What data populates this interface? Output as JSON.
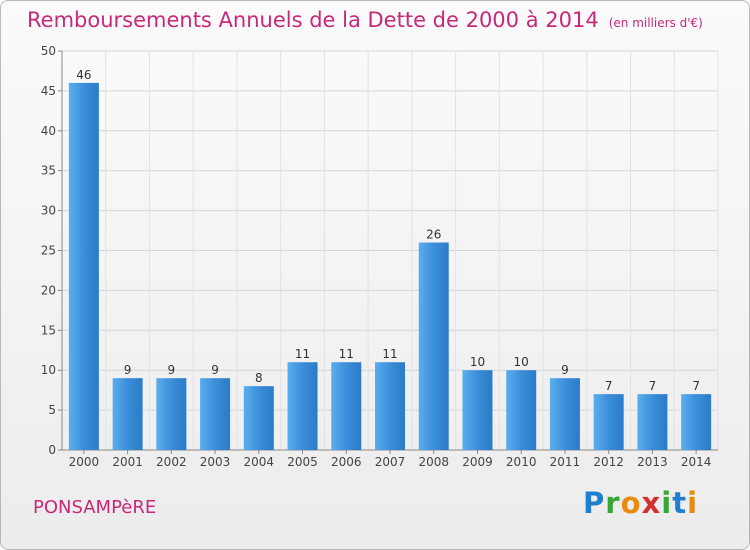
{
  "chart_data": {
    "type": "bar",
    "title": "Remboursements Annuels de la Dette de 2000 à 2014",
    "unit": "(en milliers d'€)",
    "categories": [
      "2000",
      "2001",
      "2002",
      "2003",
      "2004",
      "2005",
      "2006",
      "2007",
      "2008",
      "2009",
      "2010",
      "2011",
      "2012",
      "2013",
      "2014"
    ],
    "values": [
      46,
      9,
      9,
      9,
      8,
      11,
      11,
      11,
      26,
      10,
      10,
      9,
      7,
      7,
      7
    ],
    "ylim": [
      0,
      50
    ],
    "yticks": [
      0,
      5,
      10,
      15,
      20,
      25,
      30,
      35,
      40,
      45,
      50
    ],
    "grid": true,
    "bar_color": "#3d90dc"
  },
  "footer": {
    "place": "PONSAMPèRE",
    "logo": [
      "P",
      "r",
      "o",
      "x",
      "i",
      "t",
      "i"
    ],
    "logo_colors": [
      "#1f7fcf",
      "#36a636",
      "#e88a0f",
      "#d32f2f",
      "#36a636",
      "#1f7fcf",
      "#e88a0f"
    ]
  }
}
